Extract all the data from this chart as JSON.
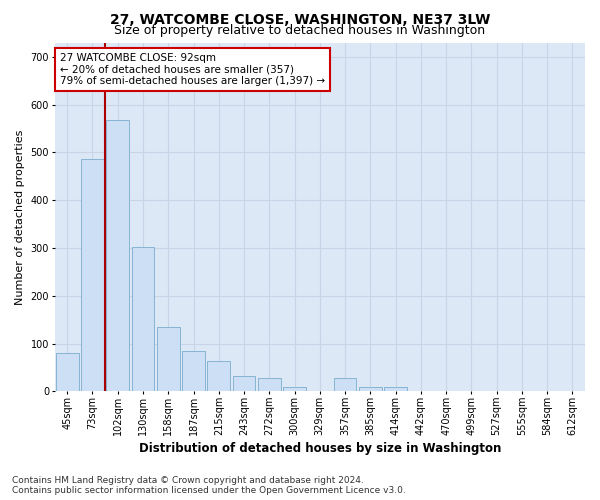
{
  "title1": "27, WATCOMBE CLOSE, WASHINGTON, NE37 3LW",
  "title2": "Size of property relative to detached houses in Washington",
  "xlabel": "Distribution of detached houses by size in Washington",
  "ylabel": "Number of detached properties",
  "categories": [
    "45sqm",
    "73sqm",
    "102sqm",
    "130sqm",
    "158sqm",
    "187sqm",
    "215sqm",
    "243sqm",
    "272sqm",
    "300sqm",
    "329sqm",
    "357sqm",
    "385sqm",
    "414sqm",
    "442sqm",
    "470sqm",
    "499sqm",
    "527sqm",
    "555sqm",
    "584sqm",
    "612sqm"
  ],
  "values": [
    80,
    487,
    567,
    303,
    135,
    85,
    63,
    32,
    27,
    10,
    0,
    27,
    10,
    10,
    0,
    0,
    0,
    0,
    0,
    0,
    0
  ],
  "bar_color": "#ccdff5",
  "bar_edge_color": "#7aadce",
  "grid_color": "#c8d4e8",
  "background_color": "#dce8f5",
  "vline_color": "#aa0000",
  "annotation_text": "27 WATCOMBE CLOSE: 92sqm\n← 20% of detached houses are smaller (357)\n79% of semi-detached houses are larger (1,397) →",
  "annotation_box_color": "#ffffff",
  "annotation_box_edge": "#cc0000",
  "ylim": [
    0,
    730
  ],
  "yticks": [
    0,
    100,
    200,
    300,
    400,
    500,
    600,
    700
  ],
  "footnote": "Contains HM Land Registry data © Crown copyright and database right 2024.\nContains public sector information licensed under the Open Government Licence v3.0.",
  "title_fontsize": 10,
  "subtitle_fontsize": 9,
  "xlabel_fontsize": 8.5,
  "ylabel_fontsize": 8,
  "tick_fontsize": 7,
  "annot_fontsize": 7.5,
  "footnote_fontsize": 6.5
}
